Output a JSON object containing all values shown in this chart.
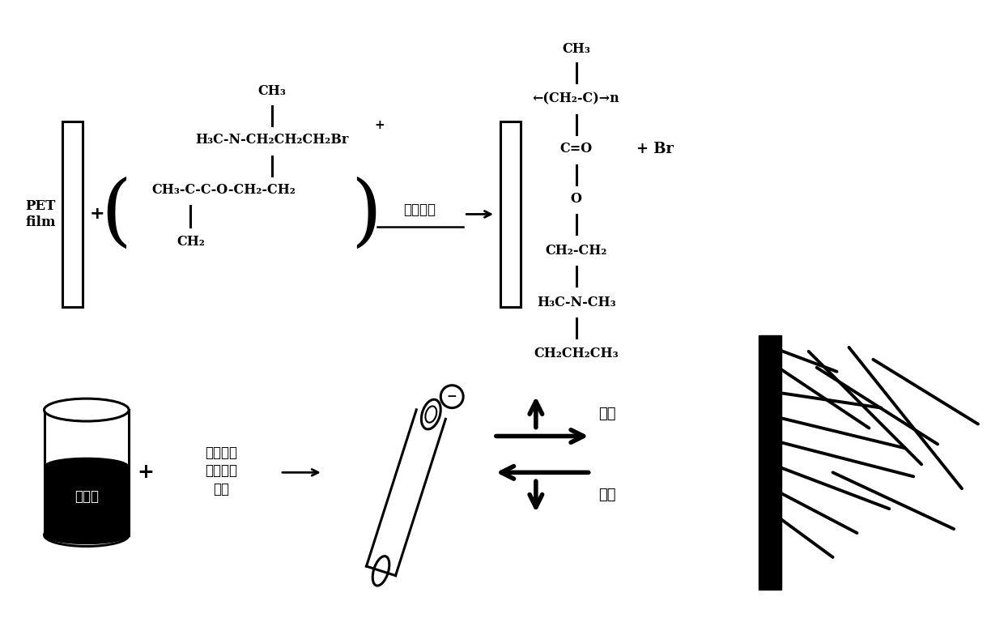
{
  "bg_color": "#ffffff",
  "fig_width": 12.4,
  "fig_height": 7.84,
  "dpi": 100,
  "pet_film_label": "PET\nfilm",
  "uv_label": "紫外辐射",
  "product_lines": [
    "CH₃",
    "—(CH₂-C)—n",
    "C=O",
    "O",
    "CH₂-CH₂",
    "H₃C-N-CH₃",
    "CH₂CH₂CH₃"
  ],
  "container_label": "纳米銀",
  "surfactant_label": "氟碳阴离\n子表面活\n性剂",
  "electrostatic_top": "静电",
  "electrostatic_bot": "吸附",
  "wire_coords": [
    [
      [
        9.55,
        3.55
      ],
      [
        10.35,
        3.25
      ]
    ],
    [
      [
        9.55,
        3.35
      ],
      [
        10.75,
        2.55
      ]
    ],
    [
      [
        9.55,
        3.0
      ],
      [
        10.9,
        2.8
      ]
    ],
    [
      [
        9.55,
        2.7
      ],
      [
        11.2,
        2.3
      ]
    ],
    [
      [
        9.55,
        2.4
      ],
      [
        11.3,
        1.95
      ]
    ],
    [
      [
        9.55,
        2.1
      ],
      [
        11.0,
        1.55
      ]
    ],
    [
      [
        9.55,
        1.8
      ],
      [
        10.6,
        1.25
      ]
    ],
    [
      [
        9.55,
        1.5
      ],
      [
        10.3,
        0.95
      ]
    ],
    [
      [
        10.0,
        3.5
      ],
      [
        11.4,
        2.1
      ]
    ],
    [
      [
        10.1,
        3.3
      ],
      [
        11.6,
        2.35
      ]
    ],
    [
      [
        10.5,
        3.55
      ],
      [
        11.9,
        1.8
      ]
    ],
    [
      [
        10.8,
        3.4
      ],
      [
        12.1,
        2.6
      ]
    ],
    [
      [
        10.3,
        2.0
      ],
      [
        11.8,
        1.3
      ]
    ]
  ]
}
